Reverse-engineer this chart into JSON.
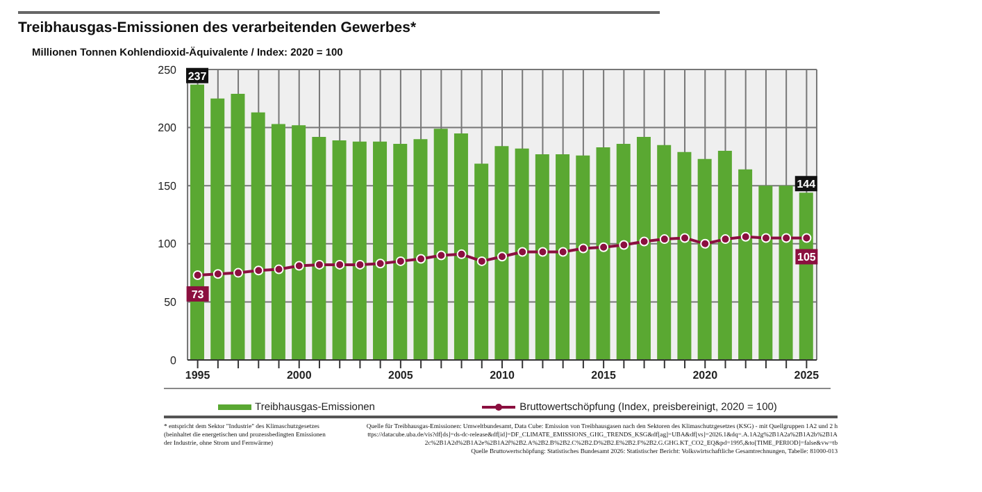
{
  "chart_data": {
    "type": "bar",
    "title": "Treibhausgas-Emissionen des verarbeitenden Gewerbes*",
    "subtitle": "Millionen Tonnen Kohlendioxid-Äquivalente / Index: 2020 = 100",
    "x": [
      1995,
      1996,
      1997,
      1998,
      1999,
      2000,
      2001,
      2002,
      2003,
      2004,
      2005,
      2006,
      2007,
      2008,
      2009,
      2010,
      2011,
      2012,
      2013,
      2014,
      2015,
      2016,
      2017,
      2018,
      2019,
      2020,
      2021,
      2022,
      2023,
      2024,
      2025
    ],
    "series": [
      {
        "name": "Treibhausgas-Emissionen",
        "color": "#5aa832",
        "values": [
          237,
          225,
          229,
          213,
          203,
          202,
          192,
          189,
          188,
          188,
          186,
          190,
          199,
          195,
          169,
          184,
          182,
          177,
          177,
          176,
          183,
          186,
          192,
          185,
          179,
          173,
          180,
          164,
          150,
          150,
          144
        ],
        "value_labels": [
          "237",
          null,
          null,
          null,
          null,
          null,
          null,
          null,
          null,
          null,
          null,
          null,
          null,
          null,
          null,
          null,
          null,
          null,
          null,
          null,
          null,
          null,
          null,
          null,
          null,
          null,
          null,
          null,
          null,
          null,
          "144"
        ]
      },
      {
        "name": "Bruttowertschöpfung (Index, preisbereinigt, 2020 = 100)",
        "type": "line",
        "color": "#8b0f3f",
        "marker": "circle",
        "values": [
          73,
          74,
          75,
          77,
          78,
          81,
          82,
          82,
          82,
          83,
          85,
          87,
          90,
          91,
          85,
          89,
          93,
          93,
          93,
          96,
          97,
          99,
          102,
          104,
          105,
          100,
          104,
          106,
          105,
          105,
          105
        ],
        "value_labels": [
          "73",
          null,
          null,
          null,
          null,
          null,
          null,
          null,
          null,
          null,
          null,
          null,
          null,
          null,
          null,
          null,
          null,
          null,
          null,
          null,
          null,
          null,
          null,
          null,
          null,
          null,
          null,
          null,
          null,
          null,
          "105"
        ]
      }
    ],
    "xlim": [
      1994.5,
      2025.5
    ],
    "xticks": [
      1995,
      {
        "value": 1996,
        "label": null
      },
      {
        "value": 1997,
        "label": null
      },
      {
        "value": 1998,
        "label": null
      },
      {
        "value": 1999,
        "label": null
      },
      2000,
      {
        "value": 2001,
        "label": null
      },
      {
        "value": 2002,
        "label": null
      },
      {
        "value": 2003,
        "label": null
      },
      {
        "value": 2004,
        "label": null
      },
      2005,
      {
        "value": 2006,
        "label": null
      },
      {
        "value": 2007,
        "label": null
      },
      {
        "value": 2008,
        "label": null
      },
      {
        "value": 2009,
        "label": null
      },
      2010,
      {
        "value": 2011,
        "label": null
      },
      {
        "value": 2012,
        "label": null
      },
      {
        "value": 2013,
        "label": null
      },
      {
        "value": 2014,
        "label": null
      },
      2015,
      {
        "value": 2016,
        "label": null
      },
      {
        "value": 2017,
        "label": null
      },
      {
        "value": 2018,
        "label": null
      },
      {
        "value": 2019,
        "label": null
      },
      2020,
      {
        "value": 2021,
        "label": null
      },
      {
        "value": 2022,
        "label": null
      },
      {
        "value": 2023,
        "label": null
      },
      {
        "value": 2024,
        "label": null
      },
      2025
    ],
    "ylim": [
      0,
      250
    ],
    "yticks": [
      0,
      50,
      100,
      150,
      200,
      250
    ],
    "grid": true,
    "legend": "bottom",
    "annotations": [
      "* entspricht dem Sektor \"Industrie\" des Klimaschutzgesetzes (beinhaltet die energetischen und prozessbedingten Emissionen der Industrie, ohne Strom und Fernwärme)",
      "Quelle für Treibhausgas-Emissionen: Umweltbundesamt, Data Cube: Emission von Treibhausgasen nach den Sektoren des Klimaschutzgesetzes (KSG) - mit Quellgruppen 1A2 und 2 https://datacube.uba.de/vis?df[ds]=ds-dc-release&df[id]=DF_CLIMATE_EMISSIONS_GHG_TRENDS_KSG&df[ag]=UBA&df[vs]=2026.1&dq=.A.1A2g%2B1A2a%2B1A2b%2B1A2c%2B1A2d%2B1A2e%2B1A2f%2B2.A%2B2.B%2B2.C%2B2.D%2B2.E%2B2.F%2B2.G.GHG.KT_CO2_EQ&pd=1995,&to[TIME_PERIOD]=false&vw=tb",
      "Quelle Bruttowertschöpfung: Statistisches Bundesamt 2026: Statistischer Bericht: Volkswirtschaftliche Gesamtrechnungen, Tabelle: 81000-013"
    ]
  }
}
